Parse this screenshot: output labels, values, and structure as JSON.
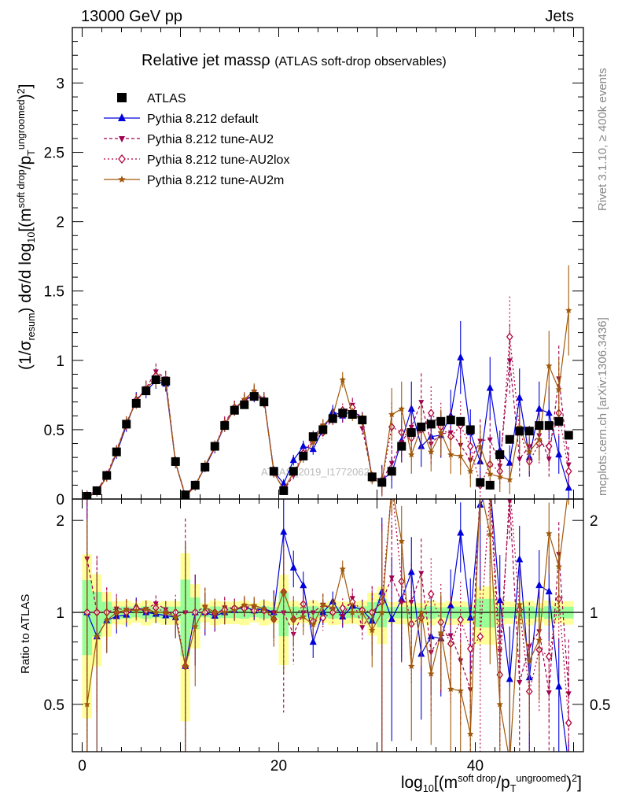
{
  "header": {
    "left": "13000 GeV pp",
    "right": "Jets"
  },
  "side": {
    "rivet": "Rivet 3.1.10, ≥ 400k events",
    "mcplots": "mcplots.cern.ch [arXiv:1306.3436]"
  },
  "watermark": "ATLAS_2019_I1772062",
  "chart_data": {
    "type": "scatter",
    "title": "Relative jet massρ",
    "subtitle": "(ATLAS soft-drop observables)",
    "xlabel_text": "log",
    "xlabel_parts": [
      "10",
      "[(m",
      "soft drop",
      "/p",
      "T",
      "ungroomed",
      ")",
      "2",
      "]"
    ],
    "ylabel_parts": [
      "(1/σ",
      "resum",
      ") dσ/d log",
      "10",
      "[(m",
      "soft drop",
      "/p",
      "T",
      "ungroomed",
      ")",
      "2",
      "]"
    ],
    "ratio_ylabel": "Ratio to ATLAS",
    "xlim": [
      -1,
      51
    ],
    "ylim": [
      0,
      3.4
    ],
    "ratio_ylim": [
      0.35,
      2.35
    ],
    "x_ticks": [
      0,
      20,
      40
    ],
    "x_tick_labels": [
      "0",
      "20",
      "40"
    ],
    "y_ticks": [
      0,
      0.5,
      1,
      1.5,
      2,
      2.5,
      3
    ],
    "y_tick_labels": [
      "0",
      "0.5",
      "1",
      "1.5",
      "2",
      "2.5",
      "3"
    ],
    "ratio_ticks": [
      0.5,
      1,
      2
    ],
    "ratio_tick_labels": [
      "0.5",
      "1",
      "2"
    ],
    "legend": [
      {
        "name": "ATLAS",
        "color": "#000000",
        "marker": "square",
        "dash": ""
      },
      {
        "name": "Pythia 8.212 default",
        "color": "#0000dd",
        "marker": "triangle-up",
        "dash": ""
      },
      {
        "name": "Pythia 8.212 tune-AU2",
        "color": "#a00050",
        "marker": "triangle-down",
        "dash": "4,3"
      },
      {
        "name": "Pythia 8.212 tune-AU2lox",
        "color": "#b0003a",
        "marker": "diamond-open",
        "dash": "2,3"
      },
      {
        "name": "Pythia 8.212 tune-AU2m",
        "color": "#a0580a",
        "marker": "star",
        "dash": ""
      }
    ],
    "x": [
      0.5,
      1.5,
      2.5,
      3.5,
      4.5,
      5.5,
      6.5,
      7.5,
      8.5,
      9.5,
      10.5,
      11.5,
      12.5,
      13.5,
      14.5,
      15.5,
      16.5,
      17.5,
      18.5,
      19.5,
      20.5,
      21.5,
      22.5,
      23.5,
      24.5,
      25.5,
      26.5,
      27.5,
      28.5,
      29.5,
      30.5,
      31.5,
      32.5,
      33.5,
      34.5,
      35.5,
      36.5,
      37.5,
      38.5,
      39.5,
      40.5,
      41.5,
      42.5,
      43.5,
      44.5,
      45.5,
      46.5,
      47.5,
      48.5,
      49.5
    ],
    "series": [
      {
        "name": "ATLAS",
        "values": [
          0.02,
          0.06,
          0.17,
          0.34,
          0.54,
          0.69,
          0.78,
          0.86,
          0.85,
          0.27,
          0.03,
          0.1,
          0.23,
          0.38,
          0.53,
          0.64,
          0.68,
          0.74,
          0.7,
          0.2,
          0.06,
          0.2,
          0.31,
          0.45,
          0.5,
          0.58,
          0.62,
          0.61,
          0.57,
          0.16,
          0.12,
          0.2,
          0.38,
          0.48,
          0.52,
          0.54,
          0.56,
          0.57,
          0.56,
          0.5,
          0.12,
          0.1,
          0.32,
          0.43,
          0.49,
          0.49,
          0.53,
          0.53,
          0.56,
          0.46
        ]
      },
      {
        "name": "Pythia 8.212 default",
        "values": [
          0.02,
          0.05,
          0.16,
          0.33,
          0.53,
          0.72,
          0.78,
          0.85,
          0.83,
          0.26,
          0.02,
          0.1,
          0.23,
          0.37,
          0.53,
          0.65,
          0.71,
          0.75,
          0.72,
          0.2,
          0.11,
          0.28,
          0.38,
          0.36,
          0.5,
          0.63,
          0.6,
          0.64,
          0.58,
          0.15,
          0.14,
          0.19,
          0.42,
          0.65,
          0.38,
          0.45,
          0.46,
          0.6,
          1.02,
          0.48,
          0.27,
          0.8,
          0.35,
          0.26,
          0.73,
          0.3,
          0.65,
          0.62,
          0.32,
          0.08
        ]
      },
      {
        "name": "Pythia 8.212 tune-AU2",
        "values": [
          0.03,
          0.06,
          0.17,
          0.35,
          0.55,
          0.71,
          0.8,
          0.92,
          0.87,
          0.26,
          0.03,
          0.1,
          0.24,
          0.37,
          0.55,
          0.66,
          0.71,
          0.77,
          0.71,
          0.2,
          0.06,
          0.17,
          0.31,
          0.45,
          0.53,
          0.59,
          0.6,
          0.68,
          0.51,
          0.16,
          0.13,
          0.26,
          0.41,
          0.52,
          0.7,
          0.4,
          0.47,
          0.48,
          0.39,
          0.28,
          0.42,
          0.43,
          0.24,
          1.0,
          0.29,
          0.38,
          0.46,
          0.29,
          0.87,
          0.25
        ]
      },
      {
        "name": "Pythia 8.212 tune-AU2lox",
        "values": [
          0.02,
          0.06,
          0.17,
          0.34,
          0.54,
          0.71,
          0.79,
          0.89,
          0.85,
          0.27,
          0.02,
          0.1,
          0.23,
          0.38,
          0.54,
          0.66,
          0.7,
          0.75,
          0.71,
          0.19,
          0.07,
          0.19,
          0.33,
          0.42,
          0.48,
          0.58,
          0.64,
          0.66,
          0.58,
          0.16,
          0.13,
          0.52,
          0.48,
          0.44,
          0.5,
          0.62,
          0.52,
          0.45,
          0.53,
          0.38,
          0.1,
          0.25,
          0.2,
          1.17,
          0.5,
          0.27,
          0.4,
          0.38,
          0.62,
          0.2
        ]
      },
      {
        "name": "Pythia 8.212 tune-AU2m",
        "values": [
          0.01,
          0.05,
          0.16,
          0.34,
          0.55,
          0.7,
          0.8,
          0.86,
          0.85,
          0.26,
          0.02,
          0.09,
          0.24,
          0.38,
          0.53,
          0.65,
          0.72,
          0.78,
          0.72,
          0.19,
          0.07,
          0.19,
          0.3,
          0.41,
          0.53,
          0.6,
          0.86,
          0.61,
          0.57,
          0.14,
          0.12,
          0.61,
          0.65,
          0.32,
          0.52,
          0.34,
          0.48,
          0.32,
          0.31,
          0.2,
          0.38,
          0.18,
          0.16,
          0.14,
          0.52,
          0.34,
          0.43,
          0.96,
          0.79,
          1.36
        ]
      }
    ]
  }
}
